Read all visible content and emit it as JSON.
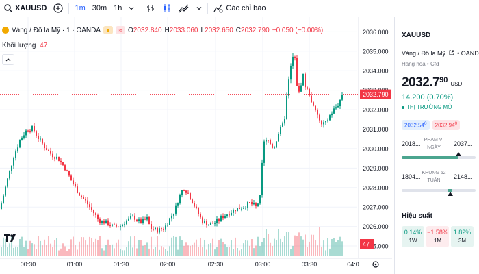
{
  "toolbar": {
    "symbol": "XAUUSD",
    "intervals": [
      "1m",
      "30m",
      "1h"
    ],
    "indicators_label": "Các chỉ báo"
  },
  "legend": {
    "title": "Vàng / Đô la Mỹ · 1 · OANDA",
    "open_label": "O",
    "open": "2032.840",
    "high_label": "H",
    "high": "2033.060",
    "low_label": "L",
    "low": "2032.650",
    "close_label": "C",
    "close": "2032.790",
    "change": "−0.050 (−0.00%)",
    "volume_label": "Khối lượng",
    "volume_value": "47"
  },
  "colors": {
    "up": "#089981",
    "down": "#f23645",
    "accent": "#2962ff",
    "gold": "#f2a900"
  },
  "chart_data": {
    "type": "candlestick",
    "y_axis_ticks": [
      "2036.000",
      "2035.000",
      "2034.000",
      "2033.000",
      "2032.000",
      "2031.000",
      "2030.000",
      "2029.000",
      "2028.000",
      "2027.000",
      "2026.000",
      "2025.000"
    ],
    "x_axis_ticks": [
      "00:30",
      "01:00",
      "01:30",
      "02:00",
      "02:30",
      "03:00",
      "03:30",
      "04:0"
    ],
    "ylim": [
      2024.65,
      2036.4
    ],
    "price_path": [
      [
        0,
        2026.9
      ],
      [
        10,
        2028.3
      ],
      [
        20,
        2029.6
      ],
      [
        30,
        2030.5
      ],
      [
        40,
        2031.0
      ],
      [
        48,
        2031.05
      ],
      [
        55,
        2030.6
      ],
      [
        65,
        2030.1
      ],
      [
        75,
        2029.7
      ],
      [
        85,
        2029.5
      ],
      [
        95,
        2029.0
      ],
      [
        105,
        2028.3
      ],
      [
        115,
        2027.7
      ],
      [
        125,
        2027.3
      ],
      [
        135,
        2026.8
      ],
      [
        145,
        2026.3
      ],
      [
        155,
        2026.2
      ],
      [
        165,
        2026.0
      ],
      [
        175,
        2026.0
      ],
      [
        185,
        2026.3
      ],
      [
        195,
        2026.5
      ],
      [
        205,
        2026.2
      ],
      [
        215,
        2026.4
      ],
      [
        220,
        2025.9
      ],
      [
        230,
        2025.8
      ],
      [
        240,
        2025.9
      ],
      [
        248,
        2026.4
      ],
      [
        255,
        2026.8
      ],
      [
        262,
        2027.5
      ],
      [
        268,
        2028.0
      ],
      [
        275,
        2027.7
      ],
      [
        285,
        2027.0
      ],
      [
        295,
        2026.3
      ],
      [
        305,
        2026.1
      ],
      [
        315,
        2026.2
      ],
      [
        325,
        2026.5
      ],
      [
        335,
        2026.7
      ],
      [
        345,
        2026.9
      ],
      [
        355,
        2027.0
      ],
      [
        365,
        2027.2
      ],
      [
        375,
        2027.0
      ],
      [
        380,
        2027.5
      ],
      [
        385,
        2030.3
      ],
      [
        392,
        2030.4
      ],
      [
        400,
        2030.0
      ],
      [
        408,
        2030.9
      ],
      [
        415,
        2031.3
      ],
      [
        420,
        2033.0
      ],
      [
        425,
        2034.2
      ],
      [
        430,
        2035.0
      ],
      [
        434,
        2033.3
      ],
      [
        438,
        2032.7
      ],
      [
        442,
        2034.0
      ],
      [
        446,
        2033.2
      ],
      [
        452,
        2032.8
      ],
      [
        458,
        2032.1
      ],
      [
        464,
        2031.7
      ],
      [
        470,
        2031.2
      ],
      [
        476,
        2031.3
      ],
      [
        482,
        2031.7
      ],
      [
        488,
        2032.0
      ],
      [
        495,
        2032.3
      ],
      [
        500,
        2032.79
      ]
    ],
    "last_price": "2032.790",
    "last_volume": "47"
  },
  "sidebar": {
    "symbol": "XAUUSD",
    "name": "Vàng / Đô la Mỹ",
    "exchange": "• OANDA",
    "category": "Hàng hóa • Cfd",
    "price_main": "2032.7",
    "price_sup": "90",
    "currency": "USD",
    "change": "14.200 (0.70%)",
    "status": "THỊ TRƯỜNG MỞ",
    "bid": "2032.54",
    "bid_sup": "0",
    "ask": "2032.94",
    "ask_sup": "0",
    "day_range": {
      "caption": "PHẠM VI NGÀY",
      "low": "2018...",
      "high": "2037...",
      "position": 0.77
    },
    "week52_range": {
      "caption": "KHUNG 52 TUẦN",
      "low": "1804...",
      "high": "2148...",
      "position": 0.66
    },
    "performance_title": "Hiệu suất",
    "performance": [
      {
        "value": "0.14%",
        "label": "1W",
        "direction": "pos"
      },
      {
        "value": "−1.58%",
        "label": "1M",
        "direction": "neg"
      },
      {
        "value": "1.82%",
        "label": "3M",
        "direction": "pos"
      }
    ]
  }
}
